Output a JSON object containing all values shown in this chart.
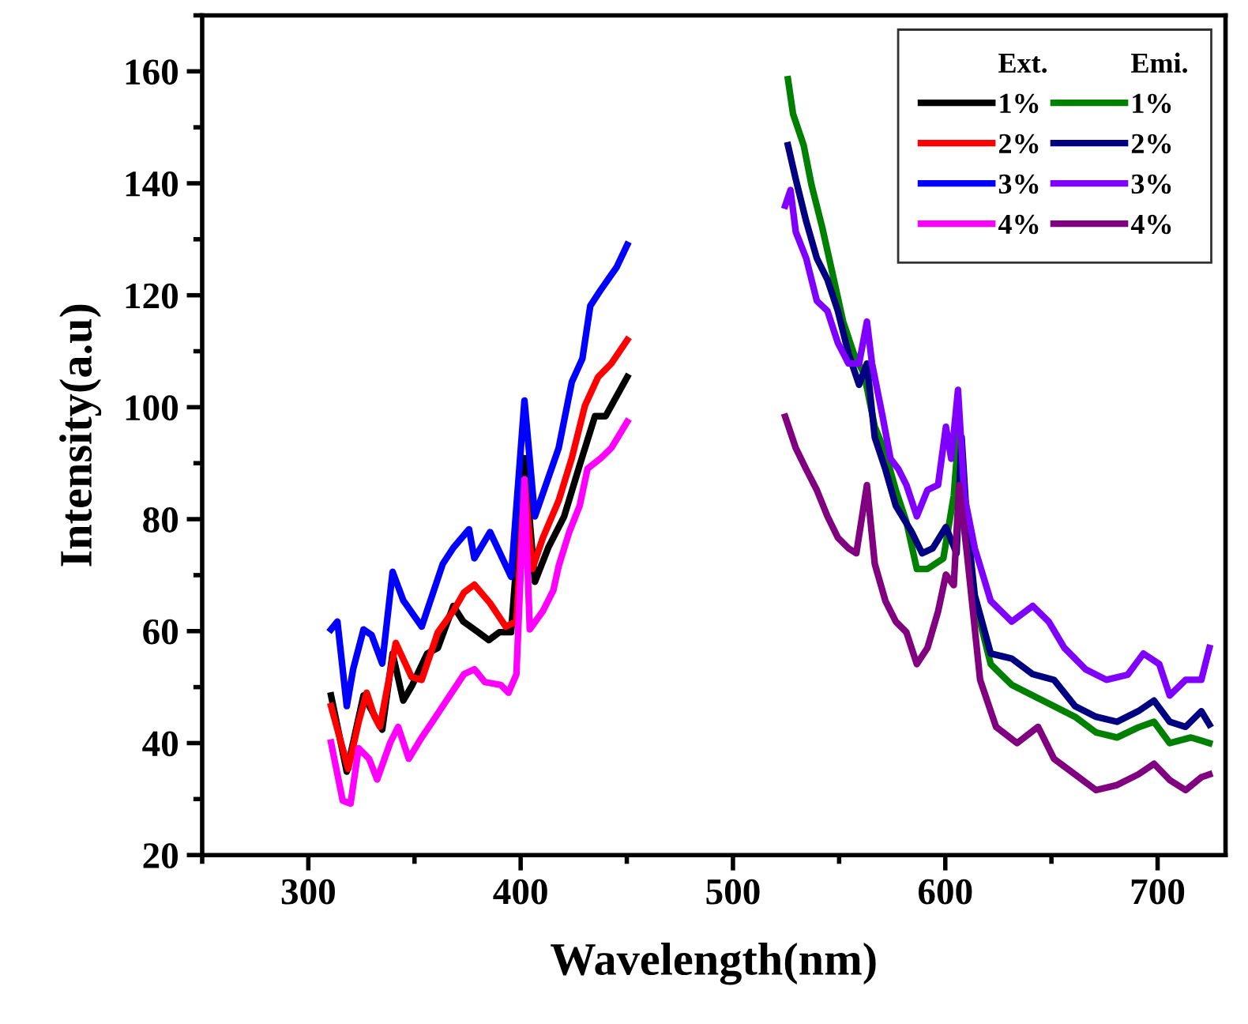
{
  "chart_data": {
    "type": "line",
    "xlabel": "Wavelength(nm)",
    "ylabel": "Intensity(a.u)",
    "xlim": [
      250,
      732
    ],
    "ylim": [
      20,
      170
    ],
    "xticks": [
      300,
      400,
      500,
      600,
      700
    ],
    "yticks": [
      20,
      40,
      60,
      80,
      100,
      120,
      140,
      160
    ],
    "grid": false,
    "legend": "top right",
    "line_style": "solid",
    "marker": "none",
    "annotations": [
      "Ext.",
      "Emi."
    ],
    "series": [
      {
        "name": "1%",
        "color": "#000000",
        "x": [
          310.7,
          318.1,
          326,
          334.8,
          339.7,
          344.7,
          349,
          356,
          361,
          368.3,
          373,
          380,
          385,
          390,
          395.5,
          401.8,
          406.7,
          413,
          420.5,
          428,
          435,
          440,
          450.2
        ],
        "values": [
          48.5,
          34.9,
          48.5,
          42.4,
          56.0,
          47.6,
          50.4,
          56,
          57,
          64.5,
          61.7,
          59.8,
          58.4,
          59.8,
          59.8,
          90.9,
          68.8,
          74.9,
          80.5,
          89.9,
          98.4,
          98.4,
          105.4
        ]
      },
      {
        "name": "2%",
        "color": "#ff0000",
        "x": [
          310.7,
          318.8,
          323.7,
          327.5,
          331.2,
          333.7,
          341.2,
          348.6,
          353.4,
          361,
          368.3,
          373.3,
          378.2,
          385.6,
          393,
          398,
          401.8,
          405.5,
          410.5,
          417.9,
          424.1,
          430.3,
          436.5,
          442.7,
          450.2
        ],
        "values": [
          46.6,
          35.4,
          43.8,
          49,
          44.7,
          42.9,
          57.9,
          51.8,
          51.3,
          59.8,
          63.6,
          66.9,
          68.3,
          65,
          60.8,
          61.7,
          87.1,
          71.1,
          76.7,
          83.3,
          90.9,
          100.3,
          105.4,
          107.8,
          112.0
        ]
      },
      {
        "name": "3%",
        "color": "#0000ff",
        "x": [
          310.7,
          313.7,
          318.1,
          321.1,
          326,
          329.8,
          334.8,
          339.7,
          344.7,
          353.4,
          363.3,
          368.3,
          375.7,
          378.2,
          385.6,
          395.5,
          401.8,
          406.7,
          417.9,
          424.1,
          429.1,
          432.8,
          437.8,
          445.2,
          450.2
        ],
        "values": [
          60.3,
          61.7,
          46.6,
          53.2,
          60.3,
          59.3,
          54.2,
          70.6,
          65.5,
          60.8,
          72.0,
          74.9,
          78.2,
          73.0,
          77.7,
          69.7,
          101.2,
          80.5,
          92.7,
          104.5,
          108.7,
          118.1,
          121,
          125,
          129
        ]
      },
      {
        "name": "4%",
        "color": "#ff00ff",
        "x": [
          310.7,
          316.2,
          319.9,
          323.7,
          328.6,
          332.4,
          338.6,
          342.3,
          347.3,
          353.4,
          358.4,
          363.3,
          373.3,
          378.2,
          383.1,
          390.6,
          394.3,
          398,
          401.8,
          404.3,
          410.5,
          415.4,
          417.9,
          422.9,
          427.8,
          431.5,
          437.8,
          442.7,
          450.2
        ],
        "values": [
          40.1,
          29.7,
          29.2,
          39.1,
          37.2,
          33.5,
          40.1,
          42.9,
          37.2,
          41,
          43.8,
          46.6,
          52.3,
          53.2,
          50.9,
          50.4,
          49,
          52.3,
          87.1,
          60.3,
          63.6,
          67.3,
          71.6,
          77.7,
          82.4,
          89,
          90.9,
          92.7,
          97.4
        ]
      },
      {
        "name": "1%",
        "color": "#008000",
        "x": [
          525.9,
          528.3,
          533.3,
          537,
          542,
          547,
          551.9,
          556.9,
          561.8,
          566.8,
          571.8,
          576.7,
          581.7,
          586.6,
          591.6,
          599.1,
          604,
          606.5,
          610.2,
          613.9,
          621.4,
          631.3,
          641.2,
          651.2,
          661.1,
          671,
          680.9,
          690.9,
          698.3,
          705.7,
          715.7,
          724.4
        ],
        "values": [
          158.6,
          152.4,
          146.8,
          139.7,
          132.2,
          123.7,
          115.3,
          109.6,
          105.9,
          96.5,
          91.8,
          85.2,
          79.5,
          71.1,
          71.1,
          73,
          84.2,
          96.5,
          79.5,
          65.4,
          54.1,
          50.4,
          48.5,
          46.6,
          44.7,
          41.9,
          41,
          42.8,
          43.8,
          40,
          41,
          40
        ]
      },
      {
        "name": "2%",
        "color": "#000080",
        "x": [
          525.9,
          529.6,
          534.5,
          539.5,
          544.5,
          549.4,
          554.4,
          559.4,
          563.1,
          566.8,
          571.8,
          576.7,
          584.2,
          589.1,
          594.1,
          600.3,
          605.3,
          607.7,
          610.2,
          613.9,
          621.4,
          631.3,
          641.2,
          651.2,
          661.1,
          671,
          680.9,
          690.9,
          698.3,
          705.7,
          713.2,
          720.6,
          724.4
        ],
        "values": [
          146.8,
          140.7,
          133.2,
          126.6,
          122.8,
          117.2,
          109.6,
          104,
          107.8,
          94.6,
          88.9,
          82.4,
          77.7,
          73.9,
          74.8,
          78.6,
          73.9,
          94.6,
          79.5,
          66.4,
          56,
          55.1,
          52.3,
          51.3,
          46.6,
          44.7,
          43.8,
          45.7,
          47.6,
          43.8,
          42.9,
          45.7,
          43.3
        ]
      },
      {
        "name": "3%",
        "color": "#8000ff",
        "x": [
          524.6,
          527.1,
          529.6,
          534.5,
          539.5,
          544.5,
          549.4,
          554.4,
          559.4,
          563.1,
          565.5,
          570.5,
          574.2,
          578,
          581.7,
          586.6,
          591.6,
          596.6,
          600.3,
          602.8,
          606,
          609,
          613.9,
          621.4,
          631.3,
          641.2,
          648.7,
          656.1,
          666,
          675.9,
          685.9,
          693.3,
          700.8,
          705.7,
          713.2,
          720.6,
          724.4
        ],
        "values": [
          136,
          138.8,
          131.3,
          126.6,
          119,
          117.2,
          111.5,
          107.8,
          107.8,
          115.3,
          107.8,
          98.3,
          90.8,
          88.9,
          86.1,
          80.5,
          85.2,
          86.1,
          96.5,
          90.8,
          103.1,
          84.2,
          74.8,
          65.4,
          61.7,
          64.5,
          61.7,
          57,
          53.2,
          51.3,
          52.2,
          56,
          54.1,
          48.5,
          51.3,
          51.3,
          57
        ]
      },
      {
        "name": "4%",
        "color": "#800080",
        "x": [
          524.6,
          529.6,
          534.5,
          539.5,
          544.5,
          549.4,
          554.4,
          558.1,
          563.1,
          566.8,
          571.8,
          576.7,
          581.7,
          586.6,
          591.6,
          596.6,
          600.3,
          604,
          606.5,
          610.2,
          616.4,
          623.9,
          633.8,
          643.7,
          651.2,
          661.1,
          671,
          680.9,
          690.9,
          698.3,
          705.7,
          713.2,
          720.6,
          724.4
        ],
        "values": [
          98.3,
          92.7,
          88.9,
          85.2,
          80.5,
          76.7,
          74.8,
          73.9,
          86.1,
          72,
          65.4,
          61.7,
          59.8,
          54.1,
          57,
          63.5,
          70.1,
          68.2,
          86.1,
          73.9,
          51.3,
          42.9,
          40,
          42.9,
          37.2,
          34.4,
          31.6,
          32.5,
          34.4,
          36.3,
          33.4,
          31.6,
          33.9,
          34.4
        ]
      }
    ]
  }
}
